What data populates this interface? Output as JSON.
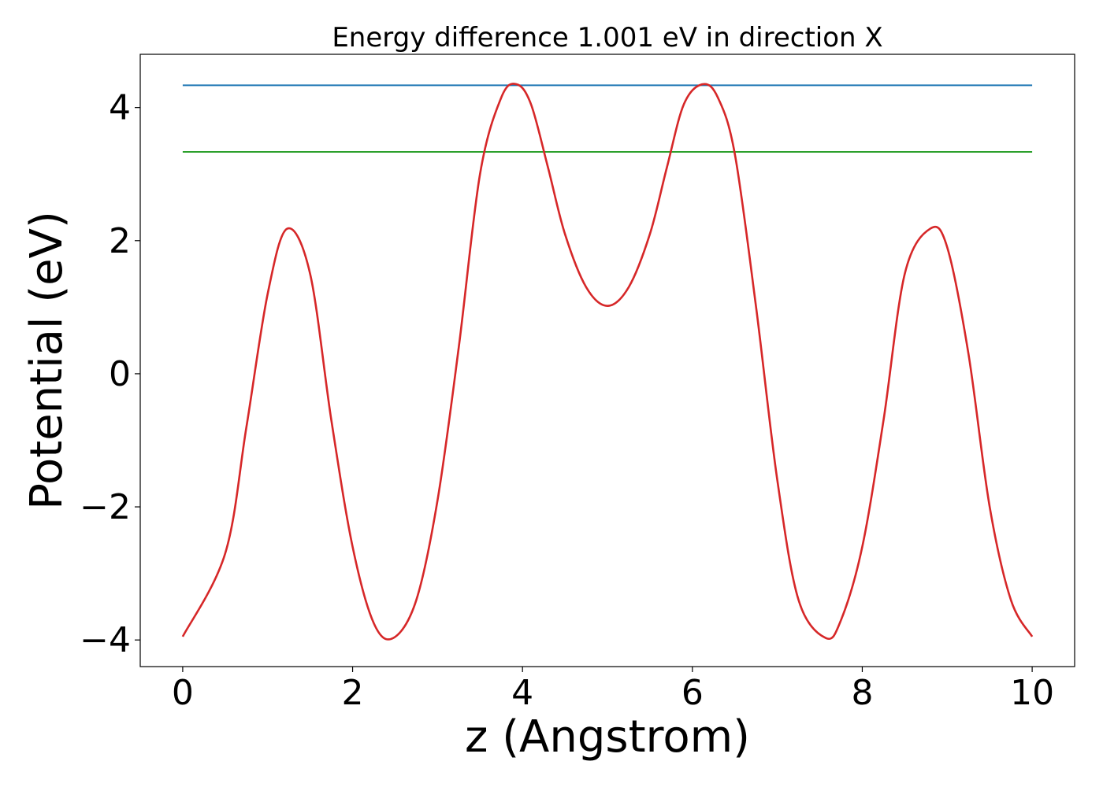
{
  "chart_data": {
    "type": "line",
    "title": "Energy difference 1.001 eV in direction X",
    "xlabel": "z (Angstrom)",
    "ylabel": "Potential (eV)",
    "xlim": [
      -0.5,
      10.5
    ],
    "ylim": [
      -4.4,
      4.8
    ],
    "xticks": [
      0,
      2,
      4,
      6,
      8,
      10
    ],
    "xtick_labels": [
      "0",
      "2",
      "4",
      "6",
      "8",
      "10"
    ],
    "yticks": [
      -4,
      -2,
      0,
      2,
      4
    ],
    "ytick_labels": [
      "−4",
      "−2",
      "0",
      "2",
      "4"
    ],
    "grid": false,
    "series": [
      {
        "color": "#1f77b4",
        "x": [
          0,
          10
        ],
        "y": [
          4.335,
          4.335
        ]
      },
      {
        "color": "#2ca02c",
        "x": [
          0,
          10
        ],
        "y": [
          3.334,
          3.334
        ]
      },
      {
        "color": "#d62728",
        "x": [
          0,
          0.5,
          0.75,
          1.0,
          1.23,
          1.5,
          1.75,
          2.0,
          2.25,
          2.48,
          2.75,
          3.0,
          3.25,
          3.5,
          3.75,
          3.93,
          4.1,
          4.3,
          4.5,
          4.75,
          5.0,
          5.25,
          5.5,
          5.7,
          5.9,
          6.12,
          6.3,
          6.5,
          6.75,
          7.0,
          7.25,
          7.57,
          7.75,
          8.0,
          8.25,
          8.5,
          8.8,
          9.0,
          9.25,
          9.5,
          9.75,
          10.0
        ],
        "y": [
          -3.95,
          -2.7,
          -0.8,
          1.2,
          2.18,
          1.5,
          -0.7,
          -2.6,
          -3.75,
          -3.97,
          -3.4,
          -1.9,
          0.4,
          3.0,
          4.15,
          4.35,
          4.05,
          3.1,
          2.1,
          1.3,
          1.02,
          1.3,
          2.1,
          3.1,
          4.05,
          4.35,
          4.15,
          3.3,
          1.0,
          -1.6,
          -3.4,
          -3.97,
          -3.7,
          -2.6,
          -0.7,
          1.5,
          2.18,
          1.9,
          0.3,
          -2.0,
          -3.4,
          -3.95
        ]
      }
    ]
  }
}
